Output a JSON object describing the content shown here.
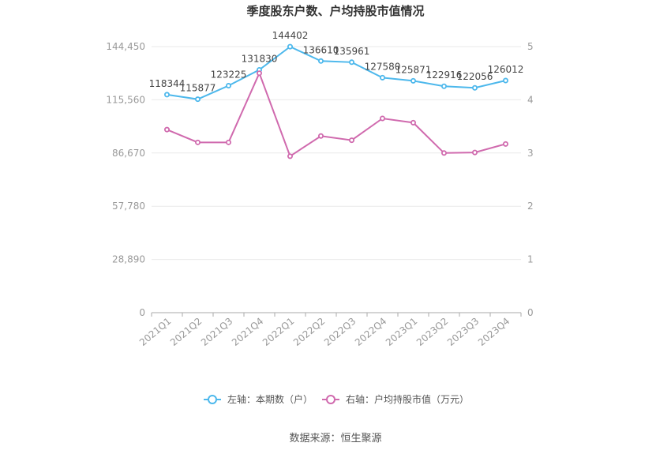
{
  "chart_data": {
    "type": "line",
    "title": "季度股东户数、户均持股市值情况",
    "categories": [
      "2021Q1",
      "2021Q2",
      "2021Q3",
      "2021Q4",
      "2022Q1",
      "2022Q2",
      "2022Q3",
      "2022Q4",
      "2023Q1",
      "2023Q2",
      "2023Q3",
      "2023Q4"
    ],
    "left_axis": {
      "ticks": [
        "0",
        "28,890",
        "57,780",
        "86,670",
        "115,560",
        "144,450"
      ],
      "range": [
        0,
        144450
      ]
    },
    "right_axis": {
      "ticks": [
        "0",
        "1",
        "2",
        "3",
        "4",
        "5"
      ],
      "range": [
        0,
        5
      ]
    },
    "series": [
      {
        "name": "左轴：本期数（户）",
        "axis": "left",
        "color": "#4db8ec",
        "values": [
          118344,
          115877,
          123225,
          131830,
          144402,
          136610,
          135961,
          127580,
          125871,
          122916,
          122056,
          126012
        ],
        "labels": [
          "118344",
          "115877",
          "123225",
          "131830",
          "144402",
          "136610",
          "135961",
          "127580",
          "125871",
          "122916",
          "122056",
          "126012"
        ]
      },
      {
        "name": "右轴：户均持股市值（万元）",
        "axis": "right",
        "color": "#d06aae",
        "values": [
          3.44,
          3.2,
          3.2,
          4.5,
          2.94,
          3.32,
          3.24,
          3.65,
          3.57,
          3.0,
          3.01,
          3.17
        ]
      }
    ],
    "grid": true,
    "legend_position": "bottom"
  },
  "footer": {
    "source": "数据来源：恒生聚源"
  }
}
